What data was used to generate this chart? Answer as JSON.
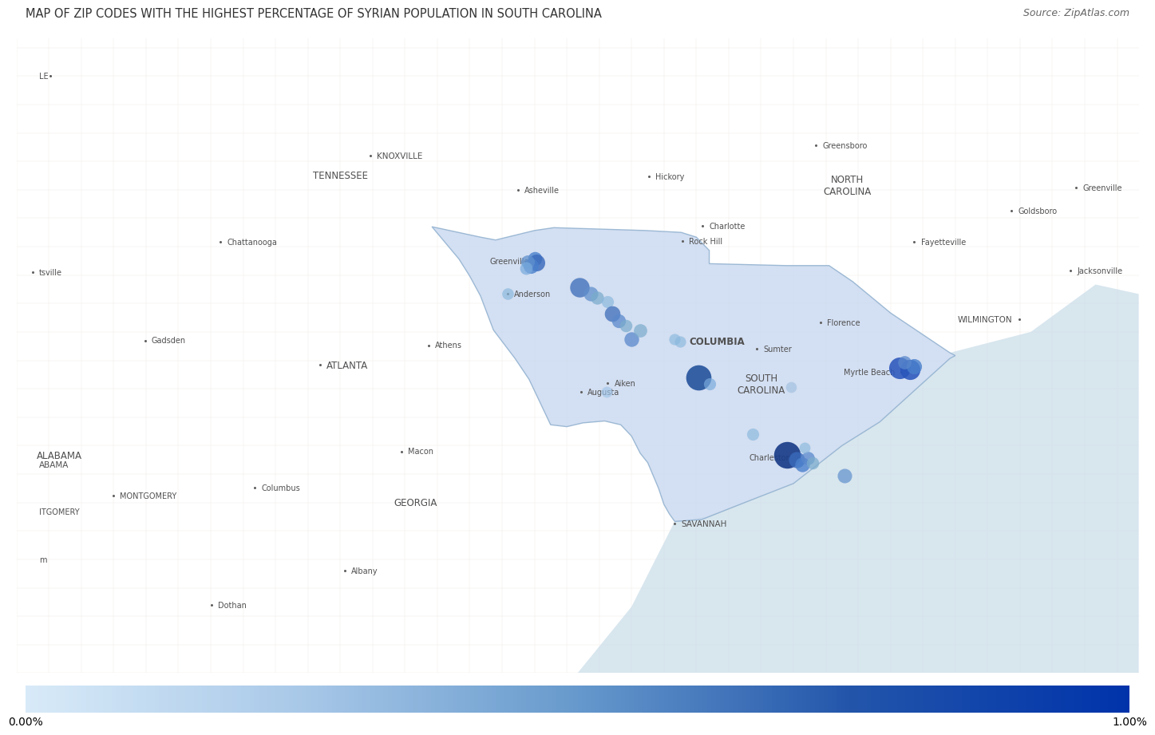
{
  "title": "MAP OF ZIP CODES WITH THE HIGHEST PERCENTAGE OF SYRIAN POPULATION IN SOUTH CAROLINA",
  "source": "Source: ZipAtlas.com",
  "colorbar_min": "0.00%",
  "colorbar_max": "1.00%",
  "title_fontsize": 10.5,
  "source_fontsize": 9,
  "sc_fill_color": "#c8d8ef",
  "sc_edge_color": "#8aaccc",
  "map_bg": "#ede8df",
  "dots": [
    {
      "lon": -82.4,
      "lat": 34.87,
      "size": 160,
      "color": "#4a80cc",
      "alpha": 0.8
    },
    {
      "lon": -82.38,
      "lat": 34.83,
      "size": 230,
      "color": "#3a6abb",
      "alpha": 0.82
    },
    {
      "lon": -82.43,
      "lat": 34.8,
      "size": 190,
      "color": "#4a80cc",
      "alpha": 0.8
    },
    {
      "lon": -82.46,
      "lat": 34.84,
      "size": 150,
      "color": "#6090cc",
      "alpha": 0.75
    },
    {
      "lon": -82.48,
      "lat": 34.77,
      "size": 130,
      "color": "#7aabdd",
      "alpha": 0.72
    },
    {
      "lon": -82.65,
      "lat": 34.5,
      "size": 110,
      "color": "#8ab8dd",
      "alpha": 0.68
    },
    {
      "lon": -81.98,
      "lat": 34.57,
      "size": 310,
      "color": "#4472bb",
      "alpha": 0.8
    },
    {
      "lon": -81.88,
      "lat": 34.5,
      "size": 170,
      "color": "#6090cc",
      "alpha": 0.75
    },
    {
      "lon": -81.82,
      "lat": 34.46,
      "size": 140,
      "color": "#7aabcc",
      "alpha": 0.72
    },
    {
      "lon": -81.72,
      "lat": 34.42,
      "size": 120,
      "color": "#8ab8dd",
      "alpha": 0.68
    },
    {
      "lon": -81.68,
      "lat": 34.29,
      "size": 200,
      "color": "#4472bb",
      "alpha": 0.78
    },
    {
      "lon": -81.62,
      "lat": 34.22,
      "size": 155,
      "color": "#5a88cc",
      "alpha": 0.75
    },
    {
      "lon": -81.55,
      "lat": 34.17,
      "size": 125,
      "color": "#7aabcc",
      "alpha": 0.7
    },
    {
      "lon": -81.5,
      "lat": 34.02,
      "size": 175,
      "color": "#5a88cc",
      "alpha": 0.75
    },
    {
      "lon": -81.42,
      "lat": 34.12,
      "size": 145,
      "color": "#7aabcc",
      "alpha": 0.7
    },
    {
      "lon": -81.1,
      "lat": 34.02,
      "size": 105,
      "color": "#8ab8dd",
      "alpha": 0.65
    },
    {
      "lon": -80.88,
      "lat": 33.62,
      "size": 520,
      "color": "#1e4d99",
      "alpha": 0.87
    },
    {
      "lon": -80.06,
      "lat": 32.8,
      "size": 580,
      "color": "#1a3d88",
      "alpha": 0.92
    },
    {
      "lon": -79.97,
      "lat": 32.75,
      "size": 210,
      "color": "#3a6abb",
      "alpha": 0.82
    },
    {
      "lon": -79.92,
      "lat": 32.7,
      "size": 175,
      "color": "#4a80cc",
      "alpha": 0.8
    },
    {
      "lon": -79.87,
      "lat": 32.77,
      "size": 145,
      "color": "#5a88cc",
      "alpha": 0.75
    },
    {
      "lon": -79.82,
      "lat": 32.72,
      "size": 125,
      "color": "#7aabcc",
      "alpha": 0.72
    },
    {
      "lon": -79.9,
      "lat": 32.88,
      "size": 100,
      "color": "#8ab8dd",
      "alpha": 0.65
    },
    {
      "lon": -80.78,
      "lat": 33.55,
      "size": 120,
      "color": "#7aabdd",
      "alpha": 0.68
    },
    {
      "lon": -81.05,
      "lat": 34.0,
      "size": 105,
      "color": "#8ab8dd",
      "alpha": 0.65
    },
    {
      "lon": -79.02,
      "lat": 33.72,
      "size": 380,
      "color": "#2a55bb",
      "alpha": 0.87
    },
    {
      "lon": -78.92,
      "lat": 33.7,
      "size": 330,
      "color": "#2a55bb",
      "alpha": 0.87
    },
    {
      "lon": -78.88,
      "lat": 33.74,
      "size": 190,
      "color": "#4a80cc",
      "alpha": 0.8
    },
    {
      "lon": -78.97,
      "lat": 33.78,
      "size": 145,
      "color": "#5a88cc",
      "alpha": 0.75
    },
    {
      "lon": -80.38,
      "lat": 33.02,
      "size": 120,
      "color": "#8ab8dd",
      "alpha": 0.65
    },
    {
      "lon": -79.53,
      "lat": 32.58,
      "size": 170,
      "color": "#6090cc",
      "alpha": 0.7
    },
    {
      "lon": -81.73,
      "lat": 33.47,
      "size": 100,
      "color": "#a0c4e8",
      "alpha": 0.65
    },
    {
      "lon": -80.02,
      "lat": 33.52,
      "size": 95,
      "color": "#9bbcdd",
      "alpha": 0.6
    }
  ],
  "sc_boundary": [
    [
      -83.35,
      35.21
    ],
    [
      -82.9,
      35.1
    ],
    [
      -82.76,
      35.07
    ],
    [
      -82.4,
      35.17
    ],
    [
      -82.22,
      35.2
    ],
    [
      -81.37,
      35.17
    ],
    [
      -81.04,
      35.15
    ],
    [
      -80.9,
      35.1
    ],
    [
      -80.78,
      34.96
    ],
    [
      -80.78,
      34.82
    ],
    [
      -80.07,
      34.8
    ],
    [
      -79.67,
      34.8
    ],
    [
      -79.45,
      34.63
    ],
    [
      -79.1,
      34.3
    ],
    [
      -78.55,
      33.88
    ],
    [
      -78.5,
      33.85
    ],
    [
      -78.55,
      33.82
    ],
    [
      -79.2,
      33.15
    ],
    [
      -79.55,
      32.9
    ],
    [
      -80.0,
      32.5
    ],
    [
      -80.45,
      32.3
    ],
    [
      -80.85,
      32.12
    ],
    [
      -81.1,
      32.1
    ],
    [
      -81.15,
      32.18
    ],
    [
      -81.2,
      32.28
    ],
    [
      -81.25,
      32.45
    ],
    [
      -81.35,
      32.72
    ],
    [
      -81.42,
      32.82
    ],
    [
      -81.5,
      33.0
    ],
    [
      -81.6,
      33.12
    ],
    [
      -81.75,
      33.16
    ],
    [
      -81.95,
      33.14
    ],
    [
      -82.1,
      33.1
    ],
    [
      -82.25,
      33.12
    ],
    [
      -82.45,
      33.6
    ],
    [
      -82.58,
      33.82
    ],
    [
      -82.7,
      34.0
    ],
    [
      -82.78,
      34.12
    ],
    [
      -82.9,
      34.48
    ],
    [
      -83.0,
      34.69
    ],
    [
      -83.1,
      34.87
    ],
    [
      -83.35,
      35.21
    ]
  ],
  "xlim": [
    -87.2,
    -76.8
  ],
  "ylim": [
    30.5,
    37.2
  ],
  "city_labels": [
    {
      "name": "COLUMBIA",
      "lon": -81.03,
      "lat": 34.0,
      "fontsize": 8.5,
      "bold": true,
      "dot": false,
      "ha": "left"
    },
    {
      "name": "SOUTH\nCAROLINA",
      "lon": -80.3,
      "lat": 33.55,
      "fontsize": 8.5,
      "bold": false,
      "dot": false,
      "ha": "center"
    },
    {
      "name": "Greenville",
      "lon": -82.39,
      "lat": 34.85,
      "fontsize": 7,
      "bold": false,
      "dot": true,
      "ha": "right"
    },
    {
      "name": "Anderson",
      "lon": -82.65,
      "lat": 34.5,
      "fontsize": 7,
      "bold": false,
      "dot": true,
      "ha": "left"
    },
    {
      "name": "Rock Hill",
      "lon": -81.03,
      "lat": 35.06,
      "fontsize": 7,
      "bold": false,
      "dot": true,
      "ha": "left"
    },
    {
      "name": "Florence",
      "lon": -79.75,
      "lat": 34.2,
      "fontsize": 7,
      "bold": false,
      "dot": true,
      "ha": "left"
    },
    {
      "name": "Myrtle Beach",
      "lon": -79.0,
      "lat": 33.68,
      "fontsize": 7,
      "bold": false,
      "dot": true,
      "ha": "right"
    },
    {
      "name": "Charleston",
      "lon": -79.96,
      "lat": 32.78,
      "fontsize": 7,
      "bold": false,
      "dot": true,
      "ha": "right"
    },
    {
      "name": "Sumter",
      "lon": -80.34,
      "lat": 33.92,
      "fontsize": 7,
      "bold": false,
      "dot": true,
      "ha": "left"
    },
    {
      "name": "Aiken",
      "lon": -81.72,
      "lat": 33.56,
      "fontsize": 7,
      "bold": false,
      "dot": true,
      "ha": "left"
    },
    {
      "name": "SAVANNAH",
      "lon": -81.1,
      "lat": 32.08,
      "fontsize": 7.5,
      "bold": false,
      "dot": true,
      "ha": "left"
    },
    {
      "name": "WILMINGTON",
      "lon": -77.91,
      "lat": 34.23,
      "fontsize": 7.5,
      "bold": false,
      "dot": true,
      "ha": "right"
    },
    {
      "name": "GEORGIA",
      "lon": -83.5,
      "lat": 32.3,
      "fontsize": 8.5,
      "bold": false,
      "dot": false,
      "ha": "center"
    },
    {
      "name": "NORTH\nCAROLINA",
      "lon": -79.5,
      "lat": 35.65,
      "fontsize": 8.5,
      "bold": false,
      "dot": false,
      "ha": "center"
    },
    {
      "name": "TENNESSEE",
      "lon": -84.2,
      "lat": 35.75,
      "fontsize": 8.5,
      "bold": false,
      "dot": false,
      "ha": "center"
    },
    {
      "name": "Charlotte",
      "lon": -80.84,
      "lat": 35.22,
      "fontsize": 7,
      "bold": false,
      "dot": true,
      "ha": "left"
    },
    {
      "name": "Asheville",
      "lon": -82.55,
      "lat": 35.6,
      "fontsize": 7,
      "bold": false,
      "dot": true,
      "ha": "left"
    },
    {
      "name": "Hickory",
      "lon": -81.34,
      "lat": 35.74,
      "fontsize": 7,
      "bold": false,
      "dot": true,
      "ha": "left"
    },
    {
      "name": "Greensboro",
      "lon": -79.79,
      "lat": 36.07,
      "fontsize": 7,
      "bold": false,
      "dot": true,
      "ha": "left"
    },
    {
      "name": "Fayetteville",
      "lon": -78.88,
      "lat": 35.05,
      "fontsize": 7,
      "bold": false,
      "dot": true,
      "ha": "left"
    },
    {
      "name": "Goldsboro",
      "lon": -77.98,
      "lat": 35.38,
      "fontsize": 7,
      "bold": false,
      "dot": true,
      "ha": "left"
    },
    {
      "name": "Greenville",
      "lon": -77.38,
      "lat": 35.62,
      "fontsize": 7,
      "bold": false,
      "dot": true,
      "ha": "left"
    },
    {
      "name": "Jacksonville",
      "lon": -77.43,
      "lat": 34.75,
      "fontsize": 7,
      "bold": false,
      "dot": true,
      "ha": "left"
    },
    {
      "name": "ATLANTA",
      "lon": -84.39,
      "lat": 33.75,
      "fontsize": 8.5,
      "bold": false,
      "dot": true,
      "ha": "left"
    },
    {
      "name": "Chattanooga",
      "lon": -85.31,
      "lat": 35.05,
      "fontsize": 7,
      "bold": false,
      "dot": true,
      "ha": "left"
    },
    {
      "name": "KNOXVILLE",
      "lon": -83.92,
      "lat": 35.96,
      "fontsize": 7.5,
      "bold": false,
      "dot": true,
      "ha": "left"
    },
    {
      "name": "Augusta",
      "lon": -81.97,
      "lat": 33.47,
      "fontsize": 7,
      "bold": false,
      "dot": true,
      "ha": "left"
    },
    {
      "name": "Athens",
      "lon": -83.38,
      "lat": 33.96,
      "fontsize": 7,
      "bold": false,
      "dot": true,
      "ha": "left"
    },
    {
      "name": "Macon",
      "lon": -83.63,
      "lat": 32.84,
      "fontsize": 7,
      "bold": false,
      "dot": true,
      "ha": "left"
    },
    {
      "name": "Columbus",
      "lon": -84.99,
      "lat": 32.46,
      "fontsize": 7,
      "bold": false,
      "dot": true,
      "ha": "left"
    },
    {
      "name": "Albany",
      "lon": -84.16,
      "lat": 31.58,
      "fontsize": 7,
      "bold": false,
      "dot": true,
      "ha": "left"
    },
    {
      "name": "Dothan",
      "lon": -85.39,
      "lat": 31.22,
      "fontsize": 7,
      "bold": false,
      "dot": true,
      "ha": "left"
    },
    {
      "name": "Gadsden",
      "lon": -86.01,
      "lat": 34.01,
      "fontsize": 7,
      "bold": false,
      "dot": true,
      "ha": "left"
    },
    {
      "name": "ALABAMA",
      "lon": -86.8,
      "lat": 32.8,
      "fontsize": 8.5,
      "bold": false,
      "dot": false,
      "ha": "center"
    },
    {
      "name": "MONTGOMERY",
      "lon": -86.3,
      "lat": 32.37,
      "fontsize": 7,
      "bold": false,
      "dot": true,
      "ha": "left"
    },
    {
      "name": "tsville",
      "lon": -87.05,
      "lat": 34.73,
      "fontsize": 7,
      "bold": false,
      "dot": true,
      "ha": "left"
    },
    {
      "name": "m",
      "lon": -87.05,
      "lat": 31.7,
      "fontsize": 7,
      "bold": false,
      "dot": false,
      "ha": "left"
    },
    {
      "name": "ITGOMERY",
      "lon": -87.05,
      "lat": 32.2,
      "fontsize": 7,
      "bold": false,
      "dot": false,
      "ha": "left"
    },
    {
      "name": "ABAMA",
      "lon": -87.05,
      "lat": 32.7,
      "fontsize": 7.5,
      "bold": false,
      "dot": false,
      "ha": "left"
    },
    {
      "name": "LE•",
      "lon": -87.05,
      "lat": 36.8,
      "fontsize": 7,
      "bold": false,
      "dot": false,
      "ha": "left"
    }
  ],
  "road_lines": [
    [
      [
        -87.2,
        34.0
      ],
      [
        -83.0,
        34.0
      ]
    ],
    [
      [
        -87.2,
        33.5
      ],
      [
        -83.5,
        33.5
      ]
    ],
    [
      [
        -87.2,
        35.5
      ],
      [
        -83.0,
        35.5
      ]
    ],
    [
      [
        -85.0,
        30.5
      ],
      [
        -85.0,
        37.2
      ]
    ],
    [
      [
        -84.0,
        30.5
      ],
      [
        -84.0,
        37.2
      ]
    ],
    [
      [
        -83.0,
        30.5
      ],
      [
        -83.0,
        37.2
      ]
    ],
    [
      [
        -82.0,
        30.5
      ],
      [
        -82.0,
        37.2
      ]
    ],
    [
      [
        -81.0,
        30.5
      ],
      [
        -81.0,
        37.2
      ]
    ],
    [
      [
        -80.0,
        30.5
      ],
      [
        -80.0,
        37.2
      ]
    ],
    [
      [
        -79.0,
        30.5
      ],
      [
        -79.0,
        37.2
      ]
    ],
    [
      [
        -78.0,
        30.5
      ],
      [
        -78.0,
        37.2
      ]
    ]
  ]
}
